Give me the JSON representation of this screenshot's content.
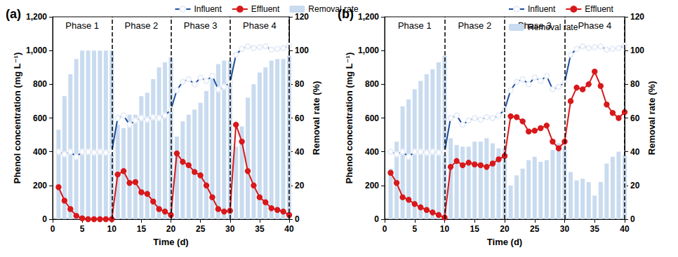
{
  "chart_data": [
    {
      "type": "line",
      "title": "(a)",
      "x_label": "Time (d)",
      "y_label": "Phenol concentration (mg L⁻¹)",
      "y2_label": "Removal rate (%)",
      "xlim": [
        0,
        40
      ],
      "xticks": [
        0,
        5,
        10,
        15,
        20,
        25,
        30,
        35,
        40
      ],
      "ylim": [
        0,
        1200
      ],
      "yticks": [
        0,
        200,
        400,
        600,
        800,
        1000,
        1200
      ],
      "y2lim": [
        0,
        120
      ],
      "y2ticks": [
        0,
        20,
        40,
        60,
        80,
        100,
        120
      ],
      "grid": false,
      "legend": "top",
      "annotations": [
        {
          "text": "Phase 1",
          "x_range": [
            0,
            10
          ]
        },
        {
          "text": "Phase 2",
          "x_range": [
            10,
            20
          ]
        },
        {
          "text": "Phase 3",
          "x_range": [
            20,
            30
          ]
        },
        {
          "text": "Phase 4",
          "x_range": [
            30,
            40
          ]
        }
      ],
      "x": [
        1,
        2,
        3,
        4,
        5,
        6,
        7,
        8,
        9,
        10,
        11,
        12,
        13,
        14,
        15,
        16,
        17,
        18,
        19,
        20,
        21,
        22,
        23,
        24,
        25,
        26,
        27,
        28,
        29,
        30,
        31,
        32,
        33,
        34,
        35,
        36,
        37,
        38,
        39,
        40
      ],
      "series": [
        {
          "name": "Influent",
          "type": "line",
          "color": "#1f4e9c",
          "marker": "emptyCircle",
          "values": [
            400,
            385,
            400,
            370,
            400,
            400,
            395,
            400,
            395,
            400,
            600,
            615,
            560,
            585,
            600,
            590,
            605,
            600,
            615,
            650,
            765,
            815,
            830,
            800,
            840,
            820,
            850,
            770,
            785,
            810,
            975,
            1010,
            1025,
            1015,
            1020,
            1025,
            1005,
            1010,
            1015,
            1030
          ]
        },
        {
          "name": "Effluent",
          "type": "line",
          "color": "#d7191c",
          "marker": "circle",
          "values": [
            190,
            110,
            60,
            20,
            5,
            0,
            0,
            0,
            0,
            0,
            265,
            285,
            215,
            220,
            160,
            150,
            105,
            60,
            45,
            25,
            390,
            340,
            320,
            280,
            260,
            200,
            130,
            60,
            45,
            50,
            560,
            460,
            285,
            200,
            130,
            100,
            65,
            55,
            45,
            25
          ]
        },
        {
          "name": "Removal rate",
          "type": "bar",
          "axis": "y2",
          "color": "#c9dbef",
          "values": [
            53,
            73,
            86,
            95,
            100,
            100,
            100,
            100,
            100,
            100,
            56,
            54,
            62,
            62,
            73,
            75,
            83,
            90,
            93,
            96,
            49,
            58,
            62,
            65,
            69,
            76,
            85,
            92,
            94,
            94,
            43,
            55,
            72,
            80,
            87,
            90,
            94,
            95,
            95,
            97
          ]
        }
      ]
    },
    {
      "type": "line",
      "title": "(b)",
      "x_label": "Time (d)",
      "y_label": "Phenol concentration (mg L⁻¹)",
      "y2_label": "Removal rate (%)",
      "xlim": [
        0,
        40
      ],
      "xticks": [
        0,
        5,
        10,
        15,
        20,
        25,
        30,
        35,
        40
      ],
      "ylim": [
        0,
        1200
      ],
      "yticks": [
        0,
        200,
        400,
        600,
        800,
        1000,
        1200
      ],
      "y2lim": [
        0,
        120
      ],
      "y2ticks": [
        0,
        20,
        40,
        60,
        80,
        100,
        120
      ],
      "grid": false,
      "legend": "top",
      "annotations": [
        {
          "text": "Phase 1",
          "x_range": [
            0,
            10
          ]
        },
        {
          "text": "Phase 2",
          "x_range": [
            10,
            20
          ]
        },
        {
          "text": "Phase 3",
          "x_range": [
            20,
            30
          ]
        },
        {
          "text": "Phase 4",
          "x_range": [
            30,
            40
          ]
        }
      ],
      "x": [
        1,
        2,
        3,
        4,
        5,
        6,
        7,
        8,
        9,
        10,
        11,
        12,
        13,
        14,
        15,
        16,
        17,
        18,
        19,
        20,
        21,
        22,
        23,
        24,
        25,
        26,
        27,
        28,
        29,
        30,
        31,
        32,
        33,
        34,
        35,
        36,
        37,
        38,
        39,
        40
      ],
      "series": [
        {
          "name": "Influent",
          "type": "line",
          "color": "#1f4e9c",
          "marker": "emptyCircle",
          "values": [
            400,
            385,
            400,
            370,
            400,
            400,
            395,
            400,
            395,
            400,
            600,
            615,
            560,
            585,
            600,
            590,
            605,
            600,
            615,
            650,
            765,
            815,
            830,
            800,
            840,
            820,
            850,
            770,
            785,
            810,
            975,
            1010,
            1025,
            1015,
            1020,
            1025,
            1005,
            1010,
            1015,
            1030
          ]
        },
        {
          "name": "Effluent",
          "type": "line",
          "color": "#d7191c",
          "marker": "circle",
          "values": [
            275,
            215,
            130,
            115,
            90,
            70,
            55,
            40,
            25,
            10,
            310,
            345,
            320,
            335,
            325,
            320,
            310,
            330,
            355,
            375,
            610,
            605,
            580,
            520,
            525,
            540,
            555,
            460,
            420,
            460,
            700,
            780,
            770,
            800,
            875,
            790,
            680,
            630,
            600,
            635
          ]
        },
        {
          "name": "Removal rate",
          "type": "bar",
          "axis": "y2",
          "color": "#c9dbef",
          "values": [
            30,
            46,
            67,
            71,
            77,
            82,
            86,
            89,
            93,
            97,
            48,
            44,
            43,
            43,
            46,
            46,
            48,
            45,
            42,
            42,
            20,
            26,
            30,
            35,
            37,
            34,
            35,
            41,
            45,
            43,
            28,
            23,
            24,
            22,
            14,
            22,
            33,
            37,
            40,
            38
          ]
        }
      ]
    }
  ]
}
